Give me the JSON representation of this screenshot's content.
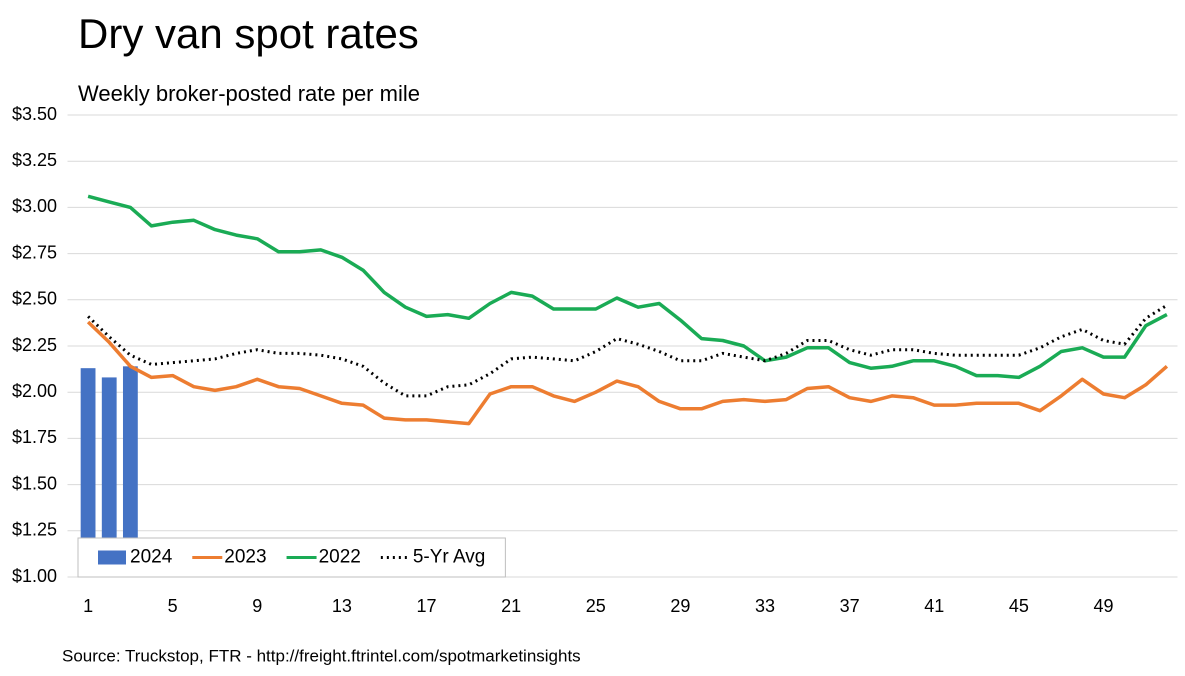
{
  "chart_data": {
    "type": "line",
    "title": "Dry van spot rates",
    "subtitle": "Weekly broker-posted rate per mile",
    "source": "Source: Truckstop, FTR - http://freight.ftrintel.com/spotmarketinsights",
    "x": [
      1,
      2,
      3,
      4,
      5,
      6,
      7,
      8,
      9,
      10,
      11,
      12,
      13,
      14,
      15,
      16,
      17,
      18,
      19,
      20,
      21,
      22,
      23,
      24,
      25,
      26,
      27,
      28,
      29,
      30,
      31,
      32,
      33,
      34,
      35,
      36,
      37,
      38,
      39,
      40,
      41,
      42,
      43,
      44,
      45,
      46,
      47,
      48,
      49,
      50,
      51,
      52
    ],
    "xlim": [
      0.5,
      52.5
    ],
    "xticks": [
      1,
      5,
      9,
      13,
      17,
      21,
      25,
      29,
      33,
      37,
      41,
      45,
      49
    ],
    "ylim": [
      1.0,
      3.5
    ],
    "yticks": [
      {
        "value": 1.0,
        "label": "$1.00"
      },
      {
        "value": 1.25,
        "label": "$1.25"
      },
      {
        "value": 1.5,
        "label": "$1.50"
      },
      {
        "value": 1.75,
        "label": "$1.75"
      },
      {
        "value": 2.0,
        "label": "$2.00"
      },
      {
        "value": 2.25,
        "label": "$2.25"
      },
      {
        "value": 2.5,
        "label": "$2.50"
      },
      {
        "value": 2.75,
        "label": "$2.75"
      },
      {
        "value": 3.0,
        "label": "$3.00"
      },
      {
        "value": 3.25,
        "label": "$3.25"
      },
      {
        "value": 3.5,
        "label": "$3.50"
      }
    ],
    "grid": true,
    "legend": "lower left",
    "series": [
      {
        "name": "2024",
        "type": "bar",
        "color": "#4472c4",
        "values": [
          2.13,
          2.08,
          2.14,
          null,
          null,
          null,
          null,
          null,
          null,
          null,
          null,
          null,
          null,
          null,
          null,
          null,
          null,
          null,
          null,
          null,
          null,
          null,
          null,
          null,
          null,
          null,
          null,
          null,
          null,
          null,
          null,
          null,
          null,
          null,
          null,
          null,
          null,
          null,
          null,
          null,
          null,
          null,
          null,
          null,
          null,
          null,
          null,
          null,
          null,
          null,
          null,
          null
        ]
      },
      {
        "name": "2023",
        "type": "line",
        "color": "#ed7d31",
        "style": "solid",
        "values": [
          2.38,
          2.27,
          2.14,
          2.08,
          2.09,
          2.03,
          2.01,
          2.03,
          2.07,
          2.03,
          2.02,
          1.98,
          1.94,
          1.93,
          1.86,
          1.85,
          1.85,
          1.84,
          1.83,
          1.99,
          2.03,
          2.03,
          1.98,
          1.95,
          2.0,
          2.06,
          2.03,
          1.95,
          1.91,
          1.91,
          1.95,
          1.96,
          1.95,
          1.96,
          2.02,
          2.03,
          1.97,
          1.95,
          1.98,
          1.97,
          1.93,
          1.93,
          1.94,
          1.94,
          1.94,
          1.9,
          1.98,
          2.07,
          1.99,
          1.97,
          2.04,
          2.14
        ]
      },
      {
        "name": "2022",
        "type": "line",
        "color": "#1aab55",
        "style": "solid",
        "values": [
          3.06,
          3.03,
          3.0,
          2.9,
          2.92,
          2.93,
          2.88,
          2.85,
          2.83,
          2.76,
          2.76,
          2.77,
          2.73,
          2.66,
          2.54,
          2.46,
          2.41,
          2.42,
          2.4,
          2.48,
          2.54,
          2.52,
          2.45,
          2.45,
          2.45,
          2.51,
          2.46,
          2.48,
          2.39,
          2.29,
          2.28,
          2.25,
          2.17,
          2.19,
          2.24,
          2.24,
          2.16,
          2.13,
          2.14,
          2.17,
          2.17,
          2.14,
          2.09,
          2.09,
          2.08,
          2.14,
          2.22,
          2.24,
          2.19,
          2.19,
          2.36,
          2.42
        ]
      },
      {
        "name": "5-Yr Avg",
        "type": "line",
        "color": "#000000",
        "style": "dotted",
        "values": [
          2.41,
          2.3,
          2.2,
          2.15,
          2.16,
          2.17,
          2.18,
          2.21,
          2.23,
          2.21,
          2.21,
          2.2,
          2.18,
          2.14,
          2.05,
          1.98,
          1.98,
          2.03,
          2.04,
          2.1,
          2.18,
          2.19,
          2.18,
          2.17,
          2.22,
          2.29,
          2.26,
          2.22,
          2.17,
          2.17,
          2.21,
          2.19,
          2.17,
          2.21,
          2.28,
          2.28,
          2.23,
          2.2,
          2.23,
          2.23,
          2.21,
          2.2,
          2.2,
          2.2,
          2.2,
          2.24,
          2.3,
          2.34,
          2.28,
          2.26,
          2.4,
          2.47
        ]
      }
    ]
  }
}
